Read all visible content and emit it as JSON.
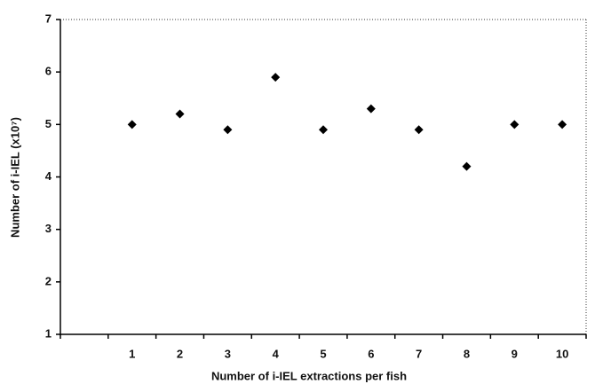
{
  "chart_data": {
    "type": "scatter",
    "x_label": "Number of i-IEL extractions per fish",
    "y_label": "Number of i-IEL (x10⁷)",
    "categories": [
      null,
      "1",
      "2",
      "3",
      "4",
      "5",
      "6",
      "7",
      "8",
      "9",
      "10"
    ],
    "values": [
      null,
      5.0,
      5.2,
      4.9,
      5.9,
      4.9,
      5.3,
      4.9,
      4.2,
      5.0,
      5.0
    ],
    "color": "#000000",
    "ylim": [
      1,
      7
    ],
    "yticks": [
      1,
      2,
      3,
      4,
      5,
      6,
      7
    ],
    "grid": false
  }
}
